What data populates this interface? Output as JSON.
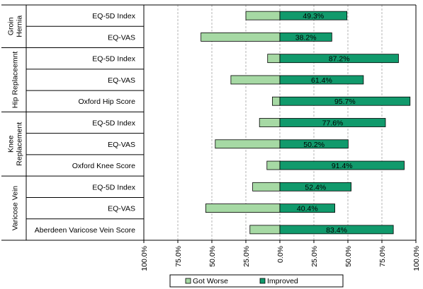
{
  "chart_data": {
    "type": "bar",
    "orientation": "horizontal",
    "stacked": "diverging",
    "xlim": [
      -100,
      100
    ],
    "x_ticks": [
      "100.0%",
      "75.0%",
      "50.0%",
      "25.0%",
      "0.0%",
      "25.0%",
      "50.0%",
      "75.0%",
      "100.0%"
    ],
    "grid": true,
    "legend_position": "bottom",
    "series": [
      {
        "name": "Got Worse",
        "color": "#a6d9a4"
      },
      {
        "name": "Improved",
        "color": "#119a6c"
      }
    ],
    "groups": [
      {
        "name": "Groin Hernia",
        "name_lines": [
          "Groin",
          "Hernia"
        ],
        "rows": [
          {
            "label": "EQ-5D Index",
            "worse": 25.0,
            "improved": 49.3,
            "improved_label": "49.3%"
          },
          {
            "label": "EQ-VAS",
            "worse": 58.0,
            "improved": 38.2,
            "improved_label": "38.2%"
          }
        ]
      },
      {
        "name": "Hip Replaceemnt",
        "name_lines": [
          "Hip Replaceemnt"
        ],
        "rows": [
          {
            "label": "EQ-5D Index",
            "worse": 9.0,
            "improved": 87.2,
            "improved_label": "87.2%"
          },
          {
            "label": "EQ-VAS",
            "worse": 36.0,
            "improved": 61.4,
            "improved_label": "61.4%"
          },
          {
            "label": "Oxford Hip Score",
            "worse": 5.5,
            "improved": 95.7,
            "improved_label": "95.7%"
          }
        ]
      },
      {
        "name": "Knee Replacement",
        "name_lines": [
          "Knee",
          "Replacement"
        ],
        "rows": [
          {
            "label": "EQ-5D Index",
            "worse": 15.0,
            "improved": 77.6,
            "improved_label": "77.6%"
          },
          {
            "label": "EQ-VAS",
            "worse": 47.5,
            "improved": 50.2,
            "improved_label": "50.2%"
          },
          {
            "label": "Oxford Knee Score",
            "worse": 9.5,
            "improved": 91.4,
            "improved_label": "91.4%"
          }
        ]
      },
      {
        "name": "Varicose Vein",
        "name_lines": [
          "Varicose Vein"
        ],
        "rows": [
          {
            "label": "EQ-5D Index",
            "worse": 20.0,
            "improved": 52.4,
            "improved_label": "52.4%"
          },
          {
            "label": "EQ-VAS",
            "worse": 54.5,
            "improved": 40.4,
            "improved_label": "40.4%"
          },
          {
            "label": "Aberdeen Varicose Vein Score",
            "worse": 22.0,
            "improved": 83.4,
            "improved_label": "83.4%"
          }
        ]
      }
    ]
  }
}
